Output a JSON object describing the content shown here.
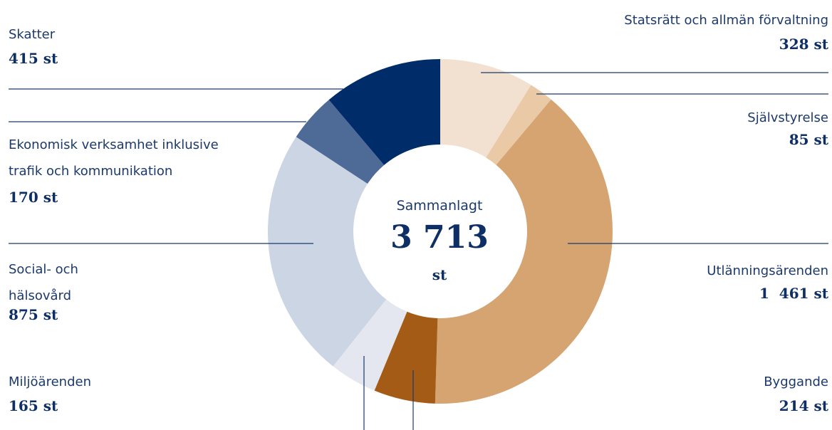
{
  "chart_data": {
    "type": "donut",
    "categories": [
      "Statsrätt och allmän förvaltning",
      "Självstyrelse",
      "Utlänningsärenden",
      "Byggande",
      "Miljöärenden",
      "Social- och\nhälsovård",
      "Ekonomisk verksamhet inklusive\ntrafik och kommunikation",
      "Skatter"
    ],
    "values": [
      328,
      85,
      1461,
      214,
      165,
      875,
      170,
      415
    ],
    "value_labels": [
      "328 st",
      "85 st",
      "1  461 st",
      "214 st",
      "165 st",
      "875 st",
      "170 st",
      "415 st"
    ],
    "colors": [
      "#f2e1d0",
      "#eac9a7",
      "#d6a470",
      "#a35b16",
      "#e4e7ef",
      "#cbd5e3",
      "#4e6a96",
      "#002d6a"
    ],
    "center_title": "Sammanlagt",
    "center_value": "3 713",
    "center_unit": "st"
  }
}
